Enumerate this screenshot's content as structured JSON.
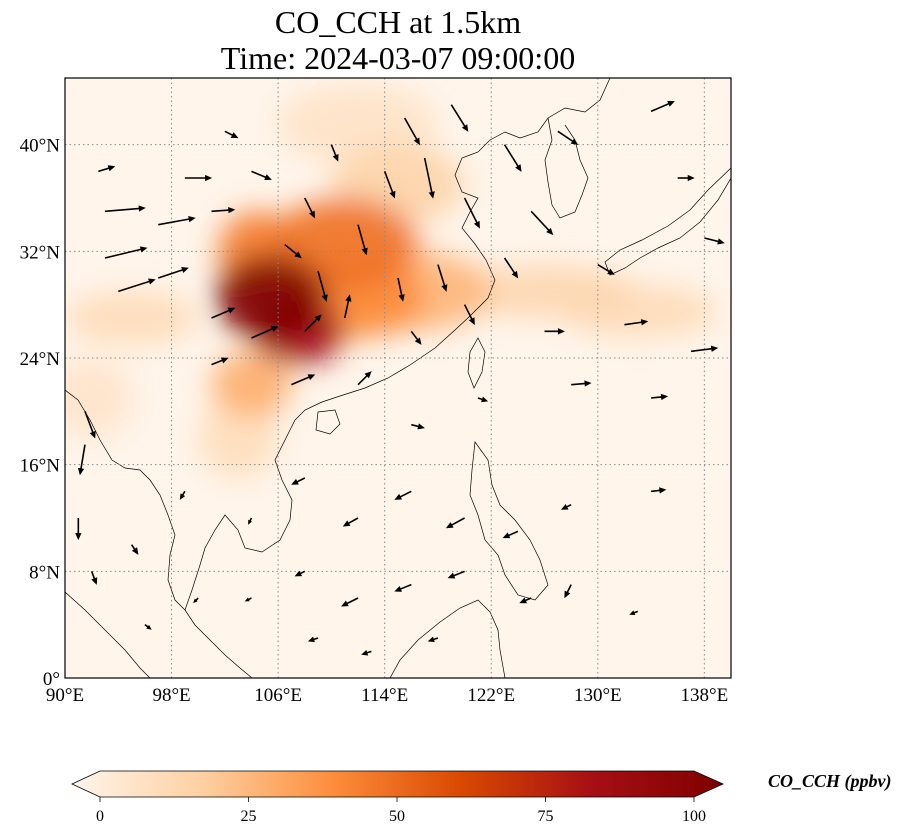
{
  "title_line1": "CO_CCH at 1.5km",
  "title_line2": "Time: 2024-03-07 09:00:00",
  "map": {
    "lon_range": [
      90,
      140
    ],
    "lat_range": [
      0,
      45
    ],
    "lon_ticks": [
      {
        "value": 90,
        "label": "90°E"
      },
      {
        "value": 98,
        "label": "98°E"
      },
      {
        "value": 106,
        "label": "106°E"
      },
      {
        "value": 114,
        "label": "114°E"
      },
      {
        "value": 122,
        "label": "122°E"
      },
      {
        "value": 130,
        "label": "130°E"
      },
      {
        "value": 138,
        "label": "138°E"
      }
    ],
    "lat_ticks": [
      {
        "value": 0,
        "label": "0°"
      },
      {
        "value": 8,
        "label": "8°N"
      },
      {
        "value": 16,
        "label": "16°N"
      },
      {
        "value": 24,
        "label": "24°N"
      },
      {
        "value": 32,
        "label": "32°N"
      },
      {
        "value": 40,
        "label": "40°N"
      }
    ],
    "gridlines": "dotted"
  },
  "colorbar": {
    "label": "CO_CCH (ppbv)",
    "min": 0,
    "max": 100,
    "ticks": [
      {
        "value": 0,
        "label": "0"
      },
      {
        "value": 25,
        "label": "25"
      },
      {
        "value": 50,
        "label": "50"
      },
      {
        "value": 75,
        "label": "75"
      },
      {
        "value": 100,
        "label": "100"
      }
    ],
    "colormap": [
      "#fff5eb",
      "#fdd0a2",
      "#fd8d3c",
      "#d94801",
      "#a50f15",
      "#7f0000"
    ],
    "extend": "both"
  },
  "field_blobs": [
    {
      "lon": 105.5,
      "lat": 28.5,
      "rlon": 4.2,
      "rlat": 3.2,
      "value": 100
    },
    {
      "lon": 107.5,
      "lat": 26.0,
      "rlon": 3.5,
      "rlat": 2.5,
      "value": 80
    },
    {
      "lon": 111,
      "lat": 32.5,
      "rlon": 5.5,
      "rlat": 3.5,
      "value": 48
    },
    {
      "lon": 104.5,
      "lat": 32.0,
      "rlon": 3.0,
      "rlat": 3.0,
      "value": 45
    },
    {
      "lon": 112,
      "lat": 28.5,
      "rlon": 5,
      "rlat": 3,
      "value": 40
    },
    {
      "lon": 104,
      "lat": 22.0,
      "rlon": 3,
      "rlat": 2.5,
      "value": 30
    },
    {
      "lon": 116,
      "lat": 29.0,
      "rlon": 6,
      "rlat": 3,
      "value": 28
    },
    {
      "lon": 115,
      "lat": 37.0,
      "rlon": 5,
      "rlat": 3,
      "value": 18
    },
    {
      "lon": 126,
      "lat": 29.0,
      "rlon": 7,
      "rlat": 2.0,
      "value": 16
    },
    {
      "lon": 133,
      "lat": 27.5,
      "rlon": 6,
      "rlat": 2.0,
      "value": 14
    },
    {
      "lon": 95,
      "lat": 27.0,
      "rlon": 5,
      "rlat": 2.0,
      "value": 14
    },
    {
      "lon": 103,
      "lat": 18.0,
      "rlon": 3,
      "rlat": 3,
      "value": 13
    },
    {
      "lon": 112,
      "lat": 41.5,
      "rlon": 6,
      "rlat": 3,
      "value": 10
    },
    {
      "lon": 92,
      "lat": 21.0,
      "rlon": 3,
      "rlat": 3,
      "value": 9
    }
  ],
  "wind_vectors": [
    {
      "lon": 92.5,
      "lat": 38,
      "u": 1.0,
      "v": 0.3
    },
    {
      "lon": 93,
      "lat": 35,
      "u": 2.4,
      "v": 0.2
    },
    {
      "lon": 93,
      "lat": 31.5,
      "u": 2.5,
      "v": 0.6
    },
    {
      "lon": 94,
      "lat": 29,
      "u": 2.2,
      "v": 0.7
    },
    {
      "lon": 97,
      "lat": 34,
      "u": 2.2,
      "v": 0.4
    },
    {
      "lon": 97,
      "lat": 30,
      "u": 1.8,
      "v": 0.6
    },
    {
      "lon": 99,
      "lat": 37.5,
      "u": 1.6,
      "v": 0.0
    },
    {
      "lon": 101,
      "lat": 35,
      "u": 1.4,
      "v": 0.1
    },
    {
      "lon": 102,
      "lat": 41,
      "u": 0.8,
      "v": -0.4
    },
    {
      "lon": 104,
      "lat": 38,
      "u": 1.2,
      "v": -0.5
    },
    {
      "lon": 108,
      "lat": 36,
      "u": 0.6,
      "v": -1.2
    },
    {
      "lon": 110,
      "lat": 40,
      "u": 0.4,
      "v": -1.0
    },
    {
      "lon": 112,
      "lat": 34,
      "u": 0.5,
      "v": -1.8
    },
    {
      "lon": 114,
      "lat": 38,
      "u": 0.6,
      "v": -1.6
    },
    {
      "lon": 115.5,
      "lat": 42,
      "u": 0.9,
      "v": -1.6
    },
    {
      "lon": 117,
      "lat": 39,
      "u": 0.5,
      "v": -2.4
    },
    {
      "lon": 119,
      "lat": 43,
      "u": 1.0,
      "v": -1.6
    },
    {
      "lon": 120,
      "lat": 36,
      "u": 0.9,
      "v": -1.8
    },
    {
      "lon": 123,
      "lat": 40,
      "u": 1.0,
      "v": -1.6
    },
    {
      "lon": 125,
      "lat": 35,
      "u": 1.3,
      "v": -1.4
    },
    {
      "lon": 127,
      "lat": 41,
      "u": 1.2,
      "v": -0.8
    },
    {
      "lon": 134,
      "lat": 42.5,
      "u": 1.4,
      "v": 0.6
    },
    {
      "lon": 136,
      "lat": 37.5,
      "u": 1.0,
      "v": 0.0
    },
    {
      "lon": 138,
      "lat": 33,
      "u": 1.2,
      "v": -0.3
    },
    {
      "lon": 130,
      "lat": 31,
      "u": 1.0,
      "v": -0.6
    },
    {
      "lon": 123,
      "lat": 31.5,
      "u": 0.8,
      "v": -1.2
    },
    {
      "lon": 118,
      "lat": 31,
      "u": 0.5,
      "v": -1.6
    },
    {
      "lon": 115,
      "lat": 30,
      "u": 0.3,
      "v": -1.4
    },
    {
      "lon": 109,
      "lat": 30.5,
      "u": 0.5,
      "v": -1.8
    },
    {
      "lon": 106.5,
      "lat": 32.5,
      "u": 1.0,
      "v": -0.8
    },
    {
      "lon": 101,
      "lat": 27,
      "u": 1.4,
      "v": 0.6
    },
    {
      "lon": 104,
      "lat": 25.5,
      "u": 1.6,
      "v": 0.7
    },
    {
      "lon": 108,
      "lat": 26,
      "u": 1.0,
      "v": 1.0
    },
    {
      "lon": 111,
      "lat": 27,
      "u": 0.3,
      "v": 1.4
    },
    {
      "lon": 112,
      "lat": 22,
      "u": 0.8,
      "v": 0.8
    },
    {
      "lon": 101,
      "lat": 23.5,
      "u": 1.0,
      "v": 0.4
    },
    {
      "lon": 107,
      "lat": 22,
      "u": 1.4,
      "v": 0.6
    },
    {
      "lon": 116,
      "lat": 26,
      "u": 0.6,
      "v": -0.8
    },
    {
      "lon": 120,
      "lat": 28,
      "u": 0.6,
      "v": -1.2
    },
    {
      "lon": 126,
      "lat": 26,
      "u": 1.2,
      "v": 0.0
    },
    {
      "lon": 132,
      "lat": 26.5,
      "u": 1.4,
      "v": 0.2
    },
    {
      "lon": 137,
      "lat": 24.5,
      "u": 1.6,
      "v": 0.2
    },
    {
      "lon": 134,
      "lat": 21,
      "u": 1.0,
      "v": 0.1
    },
    {
      "lon": 128,
      "lat": 22,
      "u": 1.2,
      "v": 0.1
    },
    {
      "lon": 121,
      "lat": 21,
      "u": 0.6,
      "v": -0.2
    },
    {
      "lon": 116,
      "lat": 19,
      "u": 0.8,
      "v": -0.2
    },
    {
      "lon": 91.5,
      "lat": 20,
      "u": 0.6,
      "v": -1.6
    },
    {
      "lon": 91.5,
      "lat": 17.5,
      "u": -0.3,
      "v": -1.8
    },
    {
      "lon": 91,
      "lat": 12,
      "u": 0.0,
      "v": -1.3
    },
    {
      "lon": 92,
      "lat": 8,
      "u": 0.3,
      "v": -0.8
    },
    {
      "lon": 95,
      "lat": 10,
      "u": 0.4,
      "v": -0.6
    },
    {
      "lon": 99,
      "lat": 14,
      "u": -0.3,
      "v": -0.5
    },
    {
      "lon": 104,
      "lat": 12,
      "u": -0.2,
      "v": -0.4
    },
    {
      "lon": 108,
      "lat": 15,
      "u": -0.8,
      "v": -0.4
    },
    {
      "lon": 112,
      "lat": 12,
      "u": -0.9,
      "v": -0.5
    },
    {
      "lon": 116,
      "lat": 14,
      "u": -1.0,
      "v": -0.5
    },
    {
      "lon": 120,
      "lat": 12,
      "u": -1.1,
      "v": -0.6
    },
    {
      "lon": 124,
      "lat": 11,
      "u": -0.9,
      "v": -0.4
    },
    {
      "lon": 128,
      "lat": 13,
      "u": -0.6,
      "v": -0.3
    },
    {
      "lon": 134,
      "lat": 14,
      "u": 0.9,
      "v": 0.1
    },
    {
      "lon": 112,
      "lat": 6,
      "u": -1.0,
      "v": -0.5
    },
    {
      "lon": 116,
      "lat": 7,
      "u": -1.0,
      "v": -0.4
    },
    {
      "lon": 120,
      "lat": 8,
      "u": -1.0,
      "v": -0.4
    },
    {
      "lon": 125,
      "lat": 6,
      "u": -0.7,
      "v": -0.3
    },
    {
      "lon": 128,
      "lat": 7,
      "u": -0.4,
      "v": -0.8
    },
    {
      "lon": 108,
      "lat": 8,
      "u": -0.6,
      "v": -0.3
    },
    {
      "lon": 104,
      "lat": 6,
      "u": -0.4,
      "v": -0.2
    },
    {
      "lon": 100,
      "lat": 6,
      "u": -0.3,
      "v": -0.3
    },
    {
      "lon": 96,
      "lat": 4,
      "u": 0.4,
      "v": -0.3
    },
    {
      "lon": 109,
      "lat": 3,
      "u": -0.6,
      "v": -0.2
    },
    {
      "lon": 113,
      "lat": 2,
      "u": -0.6,
      "v": -0.2
    },
    {
      "lon": 118,
      "lat": 3,
      "u": -0.6,
      "v": -0.2
    },
    {
      "lon": 133,
      "lat": 5,
      "u": -0.5,
      "v": -0.2
    }
  ]
}
